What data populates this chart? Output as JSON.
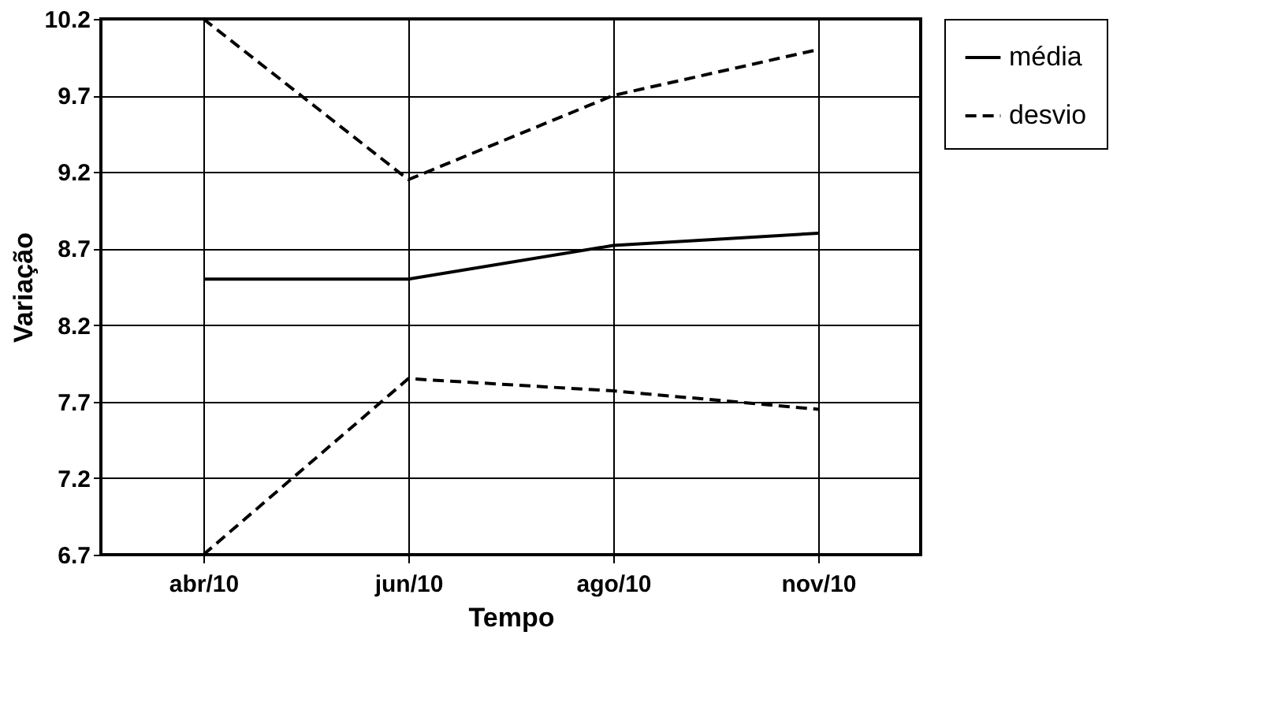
{
  "chart_data": {
    "type": "line",
    "xlabel": "Tempo",
    "ylabel": "Variação",
    "categories": [
      "abr/10",
      "jun/10",
      "ago/10",
      "nov/10"
    ],
    "series": [
      {
        "name": "média",
        "color": "#000000",
        "line_style": "solid",
        "values": [
          8.5,
          8.5,
          8.72,
          8.8
        ]
      },
      {
        "name": "desvio",
        "color": "#000000",
        "line_style": "dashed",
        "values": [
          10.2,
          9.15,
          9.7,
          10.0
        ]
      },
      {
        "color": "#000000",
        "line_style": "dashed",
        "values": [
          6.7,
          7.85,
          7.77,
          7.65
        ]
      }
    ],
    "ylim": [
      6.7,
      10.2
    ],
    "yticks": [
      6.7,
      7.2,
      7.7,
      8.2,
      8.7,
      9.2,
      9.7,
      10.2
    ],
    "grid": true,
    "legend": "right",
    "marker": "none"
  }
}
